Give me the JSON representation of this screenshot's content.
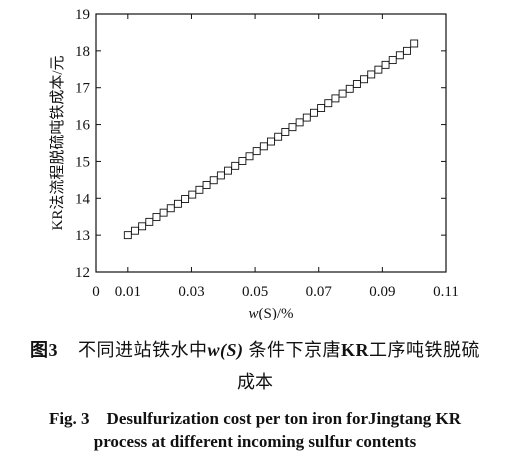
{
  "chart_data": {
    "type": "scatter",
    "xlabel": "w(S)/%",
    "ylabel": "KR法流程脱硫吨铁成本/元",
    "xlim": [
      0,
      0.11
    ],
    "ylim": [
      12,
      19
    ],
    "xticks": [
      0,
      0.01,
      0.03,
      0.05,
      0.07,
      0.09,
      0.11
    ],
    "xtick_labels": [
      "0",
      "0.01",
      "0.03",
      "0.05",
      "0.07",
      "0.09",
      "0.11"
    ],
    "yticks": [
      12,
      13,
      14,
      15,
      16,
      17,
      18,
      19
    ],
    "ytick_labels": [
      "12",
      "13",
      "14",
      "15",
      "16",
      "17",
      "18",
      "19"
    ],
    "marker": "square",
    "grid": false,
    "series": [
      {
        "x": [
          0.01,
          0.01225,
          0.0145,
          0.01675,
          0.019,
          0.02125,
          0.0235,
          0.02575,
          0.028,
          0.03025,
          0.0325,
          0.03475,
          0.037,
          0.03925,
          0.0415,
          0.04375,
          0.046,
          0.04825,
          0.0505,
          0.05275,
          0.055,
          0.05725,
          0.0595,
          0.06175,
          0.064,
          0.06625,
          0.0685,
          0.07075,
          0.073,
          0.07525,
          0.0775,
          0.07975,
          0.082,
          0.08425,
          0.0865,
          0.08875,
          0.091,
          0.09325,
          0.0955,
          0.09775,
          0.1
        ],
        "values": [
          13.0,
          13.12,
          13.24,
          13.36,
          13.49,
          13.61,
          13.73,
          13.85,
          13.98,
          14.1,
          14.23,
          14.36,
          14.49,
          14.62,
          14.75,
          14.88,
          15.01,
          15.14,
          15.28,
          15.41,
          15.54,
          15.67,
          15.8,
          15.93,
          16.06,
          16.19,
          16.32,
          16.45,
          16.58,
          16.71,
          16.84,
          16.97,
          17.1,
          17.23,
          17.36,
          17.49,
          17.62,
          17.75,
          17.88,
          18.0,
          18.2
        ]
      }
    ]
  },
  "caption": {
    "cn_label": "图3",
    "cn_pre": "不同进站铁水中",
    "cn_var": "w(S)",
    "cn_mid": "条件下京唐",
    "cn_kr": "KR",
    "cn_post": "工序吨铁脱硫",
    "cn_line2": "成本",
    "en_line1": "Fig. 3　Desulfurization cost per ton iron forJingtang KR",
    "en_line2": "process at different incoming sulfur contents"
  }
}
